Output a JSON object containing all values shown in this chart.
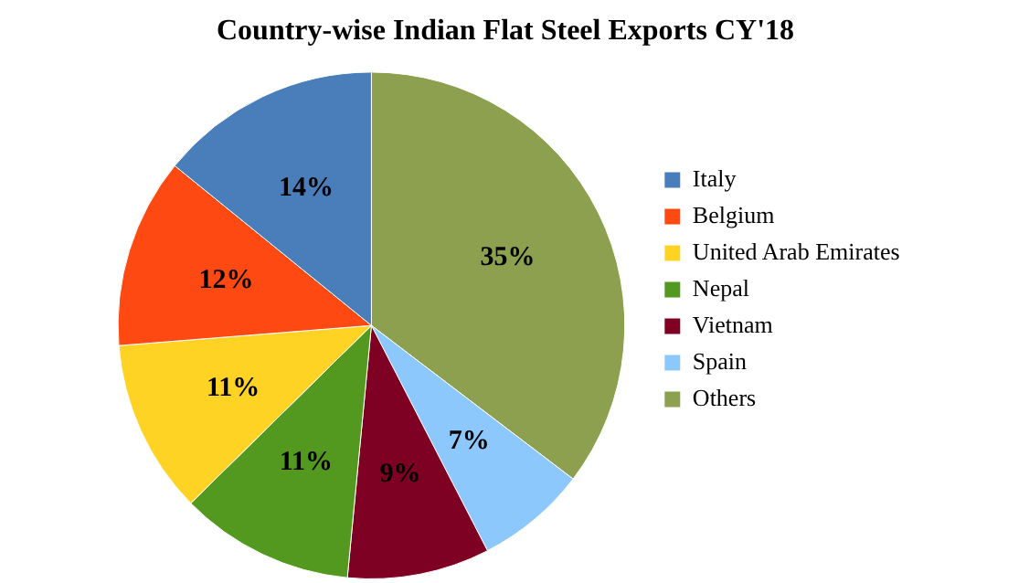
{
  "chart_data": {
    "type": "pie",
    "title": "Country-wise Indian Flat Steel Exports CY'18",
    "categories": [
      "Italy",
      "Belgium",
      "United Arab Emirates",
      "Nepal",
      "Vietnam",
      "Spain",
      "Others"
    ],
    "values": [
      14,
      12,
      11,
      11,
      9,
      7,
      35
    ],
    "colors": [
      "#4a7ebb",
      "#fe4a12",
      "#ffd324",
      "#53981f",
      "#7e0023",
      "#8cc8fb",
      "#8da04f"
    ],
    "value_labels": [
      "14%",
      "12%",
      "11%",
      "11%",
      "9%",
      "7%",
      "35%"
    ],
    "legend": "right"
  }
}
